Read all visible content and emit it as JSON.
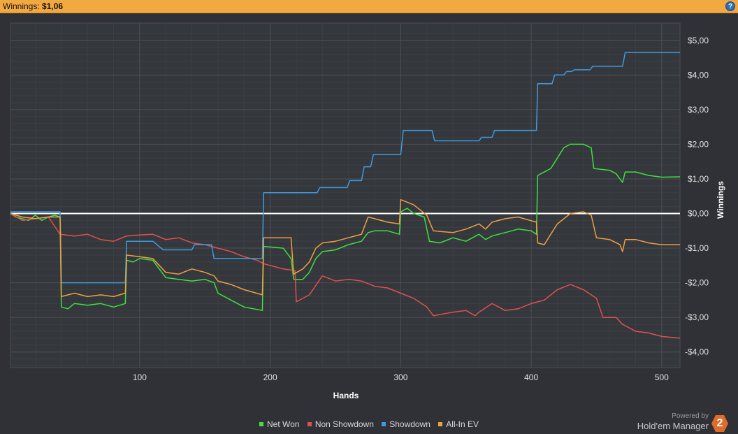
{
  "header": {
    "label": "Winnings:",
    "value": "$1,06",
    "help_icon": "help-icon"
  },
  "colors": {
    "net_won": "#3fe03f",
    "non_showdown": "#e05050",
    "showdown": "#3e9be0",
    "allin_ev": "#f0a040",
    "background": "#2f3136"
  },
  "brand": {
    "powered_by": "Powered by",
    "name": "Hold'em Manager",
    "logo": "2"
  },
  "chart_data": {
    "type": "line",
    "title": "",
    "xlabel": "Hands",
    "ylabel": "Winnings",
    "xlim": [
      1,
      514
    ],
    "ylim": [
      -4.45,
      5.5
    ],
    "x_ticks": [
      100,
      200,
      300,
      400,
      500
    ],
    "y_ticks": [
      {
        "v": 5,
        "label": "$5,00"
      },
      {
        "v": 4,
        "label": "$4,00"
      },
      {
        "v": 3,
        "label": "$3,00"
      },
      {
        "v": 2,
        "label": "$2,00"
      },
      {
        "v": 1,
        "label": "$1,00"
      },
      {
        "v": 0,
        "label": "$0,00"
      },
      {
        "v": -1,
        "label": "-$1,00"
      },
      {
        "v": -2,
        "label": "-$2,00"
      },
      {
        "v": -3,
        "label": "-$3,00"
      },
      {
        "v": -4,
        "label": "-$4,00"
      }
    ],
    "grid": true,
    "legend_position": "bottom",
    "series": [
      {
        "name": "Net Won",
        "color": "#3fe03f",
        "points": [
          [
            1,
            0
          ],
          [
            5,
            -0.1
          ],
          [
            10,
            -0.15
          ],
          [
            15,
            -0.2
          ],
          [
            20,
            -0.05
          ],
          [
            25,
            -0.2
          ],
          [
            30,
            -0.1
          ],
          [
            35,
            -0.05
          ],
          [
            39,
            -0.1
          ],
          [
            40,
            -2.7
          ],
          [
            45,
            -2.75
          ],
          [
            50,
            -2.6
          ],
          [
            60,
            -2.65
          ],
          [
            70,
            -2.6
          ],
          [
            80,
            -2.7
          ],
          [
            89,
            -2.6
          ],
          [
            90,
            -1.35
          ],
          [
            95,
            -1.4
          ],
          [
            100,
            -1.3
          ],
          [
            110,
            -1.35
          ],
          [
            115,
            -1.6
          ],
          [
            120,
            -1.85
          ],
          [
            130,
            -1.9
          ],
          [
            140,
            -1.95
          ],
          [
            150,
            -1.9
          ],
          [
            157,
            -2.0
          ],
          [
            160,
            -2.3
          ],
          [
            170,
            -2.5
          ],
          [
            180,
            -2.7
          ],
          [
            194,
            -2.8
          ],
          [
            195,
            -0.95
          ],
          [
            210,
            -1.0
          ],
          [
            216,
            -1.3
          ],
          [
            218,
            -1.9
          ],
          [
            225,
            -1.9
          ],
          [
            230,
            -1.7
          ],
          [
            235,
            -1.3
          ],
          [
            240,
            -1.1
          ],
          [
            250,
            -1.05
          ],
          [
            260,
            -0.9
          ],
          [
            270,
            -0.8
          ],
          [
            275,
            -0.55
          ],
          [
            280,
            -0.5
          ],
          [
            290,
            -0.5
          ],
          [
            299,
            -0.6
          ],
          [
            300,
            0.05
          ],
          [
            305,
            0.15
          ],
          [
            310,
            0.0
          ],
          [
            318,
            -0.1
          ],
          [
            322,
            -0.8
          ],
          [
            330,
            -0.85
          ],
          [
            340,
            -0.7
          ],
          [
            350,
            -0.8
          ],
          [
            355,
            -0.7
          ],
          [
            360,
            -0.6
          ],
          [
            365,
            -0.75
          ],
          [
            370,
            -0.65
          ],
          [
            380,
            -0.55
          ],
          [
            390,
            -0.45
          ],
          [
            400,
            -0.5
          ],
          [
            404,
            -0.6
          ],
          [
            405,
            1.1
          ],
          [
            410,
            1.2
          ],
          [
            415,
            1.3
          ],
          [
            420,
            1.6
          ],
          [
            425,
            1.9
          ],
          [
            430,
            2.0
          ],
          [
            440,
            2.0
          ],
          [
            446,
            1.9
          ],
          [
            448,
            1.3
          ],
          [
            460,
            1.25
          ],
          [
            465,
            1.15
          ],
          [
            470,
            0.9
          ],
          [
            472,
            1.2
          ],
          [
            480,
            1.2
          ],
          [
            490,
            1.1
          ],
          [
            500,
            1.05
          ],
          [
            514,
            1.06
          ]
        ]
      },
      {
        "name": "Non Showdown",
        "color": "#e05050",
        "points": [
          [
            1,
            0
          ],
          [
            10,
            -0.2
          ],
          [
            20,
            -0.15
          ],
          [
            30,
            -0.1
          ],
          [
            39,
            -0.6
          ],
          [
            50,
            -0.65
          ],
          [
            60,
            -0.6
          ],
          [
            70,
            -0.75
          ],
          [
            80,
            -0.8
          ],
          [
            90,
            -0.65
          ],
          [
            100,
            -0.62
          ],
          [
            110,
            -0.6
          ],
          [
            120,
            -0.75
          ],
          [
            130,
            -0.7
          ],
          [
            140,
            -0.85
          ],
          [
            150,
            -0.9
          ],
          [
            160,
            -1.0
          ],
          [
            170,
            -1.1
          ],
          [
            180,
            -1.25
          ],
          [
            190,
            -1.35
          ],
          [
            195,
            -1.45
          ],
          [
            210,
            -1.6
          ],
          [
            219,
            -1.65
          ],
          [
            220,
            -2.55
          ],
          [
            230,
            -2.35
          ],
          [
            240,
            -1.8
          ],
          [
            250,
            -1.95
          ],
          [
            260,
            -1.9
          ],
          [
            270,
            -1.95
          ],
          [
            280,
            -2.1
          ],
          [
            290,
            -2.15
          ],
          [
            300,
            -2.3
          ],
          [
            310,
            -2.45
          ],
          [
            320,
            -2.7
          ],
          [
            325,
            -2.95
          ],
          [
            340,
            -2.85
          ],
          [
            350,
            -2.8
          ],
          [
            357,
            -2.95
          ],
          [
            360,
            -2.85
          ],
          [
            370,
            -2.6
          ],
          [
            380,
            -2.8
          ],
          [
            390,
            -2.75
          ],
          [
            400,
            -2.6
          ],
          [
            410,
            -2.5
          ],
          [
            420,
            -2.2
          ],
          [
            430,
            -2.05
          ],
          [
            440,
            -2.2
          ],
          [
            450,
            -2.45
          ],
          [
            455,
            -3.0
          ],
          [
            465,
            -3.0
          ],
          [
            470,
            -3.2
          ],
          [
            480,
            -3.4
          ],
          [
            490,
            -3.45
          ],
          [
            500,
            -3.55
          ],
          [
            514,
            -3.6
          ]
        ]
      },
      {
        "name": "Showdown",
        "color": "#3e9be0",
        "points": [
          [
            1,
            0.05
          ],
          [
            39,
            0.05
          ],
          [
            40,
            -2.0
          ],
          [
            89,
            -2.0
          ],
          [
            90,
            -0.8
          ],
          [
            110,
            -0.8
          ],
          [
            118,
            -1.05
          ],
          [
            140,
            -1.05
          ],
          [
            142,
            -0.9
          ],
          [
            155,
            -0.9
          ],
          [
            157,
            -1.3
          ],
          [
            194,
            -1.3
          ],
          [
            195,
            0.6
          ],
          [
            236,
            0.6
          ],
          [
            238,
            0.75
          ],
          [
            259,
            0.75
          ],
          [
            261,
            0.95
          ],
          [
            270,
            0.95
          ],
          [
            272,
            1.35
          ],
          [
            277,
            1.35
          ],
          [
            279,
            1.7
          ],
          [
            300,
            1.7
          ],
          [
            302,
            2.4
          ],
          [
            324,
            2.4
          ],
          [
            326,
            2.1
          ],
          [
            360,
            2.1
          ],
          [
            362,
            2.2
          ],
          [
            370,
            2.2
          ],
          [
            372,
            2.4
          ],
          [
            404,
            2.4
          ],
          [
            405,
            3.75
          ],
          [
            416,
            3.75
          ],
          [
            418,
            4.0
          ],
          [
            425,
            4.0
          ],
          [
            427,
            4.1
          ],
          [
            431,
            4.1
          ],
          [
            433,
            4.15
          ],
          [
            445,
            4.15
          ],
          [
            447,
            4.25
          ],
          [
            470,
            4.25
          ],
          [
            472,
            4.65
          ],
          [
            514,
            4.65
          ]
        ]
      },
      {
        "name": "All-In EV",
        "color": "#f0a040",
        "points": [
          [
            1,
            0
          ],
          [
            10,
            -0.1
          ],
          [
            20,
            -0.15
          ],
          [
            30,
            -0.1
          ],
          [
            39,
            -0.1
          ],
          [
            40,
            -2.4
          ],
          [
            50,
            -2.3
          ],
          [
            60,
            -2.4
          ],
          [
            70,
            -2.35
          ],
          [
            80,
            -2.4
          ],
          [
            89,
            -2.3
          ],
          [
            90,
            -1.2
          ],
          [
            100,
            -1.25
          ],
          [
            110,
            -1.3
          ],
          [
            115,
            -1.5
          ],
          [
            120,
            -1.7
          ],
          [
            130,
            -1.75
          ],
          [
            140,
            -1.6
          ],
          [
            150,
            -1.7
          ],
          [
            157,
            -1.8
          ],
          [
            160,
            -1.95
          ],
          [
            170,
            -2.05
          ],
          [
            180,
            -2.2
          ],
          [
            194,
            -2.35
          ],
          [
            195,
            -0.7
          ],
          [
            216,
            -0.7
          ],
          [
            218,
            -1.75
          ],
          [
            225,
            -1.6
          ],
          [
            230,
            -1.4
          ],
          [
            235,
            -1.0
          ],
          [
            240,
            -0.85
          ],
          [
            250,
            -0.8
          ],
          [
            260,
            -0.7
          ],
          [
            270,
            -0.6
          ],
          [
            275,
            -0.1
          ],
          [
            280,
            -0.15
          ],
          [
            290,
            -0.25
          ],
          [
            299,
            -0.3
          ],
          [
            300,
            0.4
          ],
          [
            310,
            0.25
          ],
          [
            320,
            -0.05
          ],
          [
            325,
            -0.5
          ],
          [
            340,
            -0.55
          ],
          [
            350,
            -0.45
          ],
          [
            360,
            -0.3
          ],
          [
            365,
            -0.45
          ],
          [
            370,
            -0.25
          ],
          [
            380,
            -0.15
          ],
          [
            390,
            -0.1
          ],
          [
            404,
            -0.25
          ],
          [
            405,
            -0.85
          ],
          [
            410,
            -0.9
          ],
          [
            415,
            -0.6
          ],
          [
            420,
            -0.3
          ],
          [
            430,
            0.0
          ],
          [
            440,
            0.05
          ],
          [
            446,
            -0.05
          ],
          [
            450,
            -0.7
          ],
          [
            460,
            -0.75
          ],
          [
            468,
            -0.9
          ],
          [
            470,
            -1.1
          ],
          [
            472,
            -0.75
          ],
          [
            480,
            -0.75
          ],
          [
            490,
            -0.85
          ],
          [
            500,
            -0.9
          ],
          [
            514,
            -0.9
          ]
        ]
      }
    ]
  }
}
